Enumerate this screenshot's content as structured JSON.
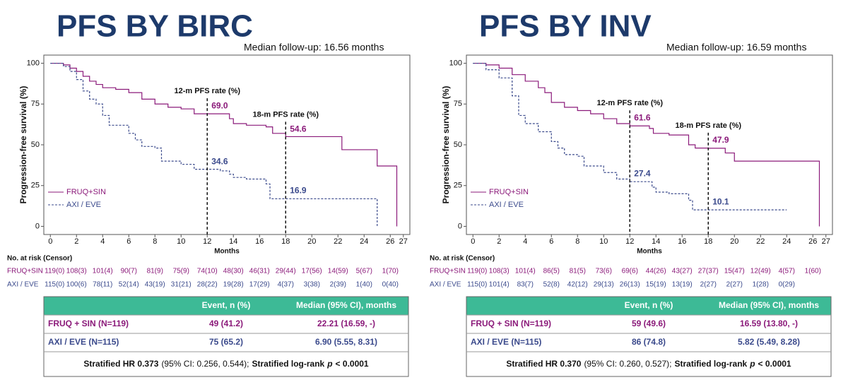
{
  "chart_data": [
    {
      "type": "km",
      "title": "PFS BY BIRC",
      "subtitle": "Median follow-up: 16.56 months",
      "xlabel": "Months",
      "ylabel": "Progression-free survival (%)",
      "xlim": [
        -0.5,
        27.5
      ],
      "ylim": [
        -5,
        105
      ],
      "xticks": [
        0,
        2,
        4,
        6,
        8,
        10,
        12,
        14,
        16,
        18,
        20,
        22,
        24,
        26,
        27
      ],
      "yticks": [
        0,
        25,
        50,
        75,
        100
      ],
      "legend": "lower left",
      "series": [
        {
          "name": "FRUQ+SIN",
          "color": "#8b1a7a",
          "dash": false,
          "x": [
            0,
            1,
            1.5,
            2,
            2.5,
            3,
            3.5,
            4,
            5,
            6,
            7,
            8,
            9,
            10,
            11,
            13.7,
            14,
            15,
            16.5,
            17,
            18,
            22.3,
            25,
            26.5
          ],
          "values": [
            100,
            99,
            97,
            95,
            92,
            89,
            87,
            85,
            84,
            82,
            78,
            75,
            73,
            72,
            69,
            66,
            63,
            62,
            61,
            57,
            55,
            47,
            37,
            0
          ]
        },
        {
          "name": "AXI / EVE",
          "color": "#3b4a8c",
          "dash": true,
          "x": [
            0,
            1,
            1.5,
            2,
            2.5,
            3,
            3.5,
            4,
            4.5,
            6,
            6.5,
            7,
            8,
            8.5,
            10,
            11,
            13,
            13.7,
            14,
            15,
            16.5,
            16.8,
            25
          ],
          "values": [
            100,
            98,
            95,
            90,
            83,
            78,
            75,
            68,
            62,
            57,
            53,
            49,
            48,
            40,
            38,
            35,
            34,
            32,
            30,
            29,
            26,
            16.9,
            0
          ]
        }
      ],
      "annotations": [
        {
          "label": "12-m PFS rate (%)",
          "x": 12,
          "values": [
            69.0,
            34.6
          ],
          "value_labels": [
            "69.0",
            "34.6"
          ]
        },
        {
          "label": "18-m PFS rate (%)",
          "x": 18,
          "values": [
            54.6,
            16.9
          ]
        }
      ],
      "risk_table": {
        "title": "No. at risk (Censor)",
        "rows": [
          [
            "119(0)",
            "108(3)",
            "101(4)",
            "90(7)",
            "81(9)",
            "75(9)",
            "74(10)",
            "48(30)",
            "46(31)",
            "29(44)",
            "17(56)",
            "14(59)",
            "5(67)",
            "1(70)"
          ],
          [
            "115(0)",
            "100(6)",
            "78(11)",
            "52(14)",
            "43(19)",
            "31(21)",
            "28(22)",
            "19(28)",
            "17(29)",
            "4(37)",
            "3(38)",
            "2(39)",
            "1(40)",
            "0(40)"
          ]
        ]
      },
      "summary": {
        "header": [
          "Event, n (%)",
          "Median (95% CI), months"
        ],
        "rows": [
          [
            "FRUQ + SIN (N=119)",
            "49 (41.2)",
            "22.21 (16.59, -)"
          ],
          [
            "AXI / EVE (N=115)",
            "75 (65.2)",
            "6.90 (5.55, 8.31)"
          ]
        ],
        "footnote": [
          "Stratified HR 0.373",
          "(95% CI: 0.256, 0.544);",
          "Stratified log-rank",
          "p",
          "< 0.0001"
        ]
      }
    },
    {
      "type": "km",
      "title": "PFS BY INV",
      "subtitle": "Median follow-up: 16.59 months",
      "xlabel": "Months",
      "ylabel": "Progression-free survival (%)",
      "xlim": [
        -0.5,
        27.5
      ],
      "ylim": [
        -5,
        105
      ],
      "xticks": [
        0,
        2,
        4,
        6,
        8,
        10,
        12,
        14,
        16,
        18,
        20,
        22,
        24,
        26,
        27
      ],
      "yticks": [
        0,
        25,
        50,
        75,
        100
      ],
      "legend": "lower left",
      "series": [
        {
          "name": "FRUQ+SIN",
          "color": "#8b1a7a",
          "dash": false,
          "x": [
            0,
            1,
            2,
            3,
            4,
            5,
            5.5,
            6,
            7,
            8,
            9,
            10,
            11,
            12,
            13.5,
            13.8,
            15,
            16.5,
            17,
            18,
            19.3,
            20,
            26.5
          ],
          "values": [
            100,
            99,
            97,
            93,
            89,
            85,
            82,
            76,
            73,
            71,
            69,
            66,
            63,
            61.6,
            60,
            57,
            56,
            50,
            48,
            47.9,
            45,
            40,
            0
          ]
        },
        {
          "name": "AXI / EVE",
          "color": "#3b4a8c",
          "dash": true,
          "x": [
            0,
            1,
            2,
            3,
            3.5,
            4,
            5,
            6,
            6.5,
            7,
            8,
            8.5,
            10,
            11,
            12,
            13.7,
            14,
            15,
            16.5,
            16.8,
            24
          ],
          "values": [
            100,
            96,
            91,
            80,
            68,
            63,
            58,
            52,
            48,
            44,
            43,
            37,
            33,
            29,
            27.4,
            24,
            21,
            20,
            16,
            10.1,
            10.1
          ]
        }
      ],
      "annotations": [
        {
          "label": "12-m PFS rate (%)",
          "x": 12,
          "values": [
            61.6,
            27.4
          ]
        },
        {
          "label": "18-m PFS rate (%)",
          "x": 18,
          "values": [
            47.9,
            10.1
          ]
        }
      ],
      "risk_table": {
        "title": "No. at risk (Censor)",
        "rows": [
          [
            "119(0)",
            "108(3)",
            "101(4)",
            "86(5)",
            "81(5)",
            "73(6)",
            "69(6)",
            "44(26)",
            "43(27)",
            "27(37)",
            "15(47)",
            "12(49)",
            "4(57)",
            "1(60)"
          ],
          [
            "115(0)",
            "101(4)",
            "83(7)",
            "52(8)",
            "42(12)",
            "29(13)",
            "26(13)",
            "15(19)",
            "13(19)",
            "2(27)",
            "2(27)",
            "1(28)",
            "0(29)",
            null
          ]
        ]
      },
      "summary": {
        "header": [
          "Event, n (%)",
          "Median (95% CI), months"
        ],
        "rows": [
          [
            "FRUQ + SIN (N=119)",
            "59 (49.6)",
            "16.59 (13.80, -)"
          ],
          [
            "AXI / EVE (N=115)",
            "86 (74.8)",
            "5.82 (5.49, 8.28)"
          ]
        ],
        "footnote": [
          "Stratified HR 0.370",
          "(95% CI: 0.260, 0.527);",
          "Stratified log-rank",
          "p",
          "< 0.0001"
        ]
      }
    }
  ]
}
